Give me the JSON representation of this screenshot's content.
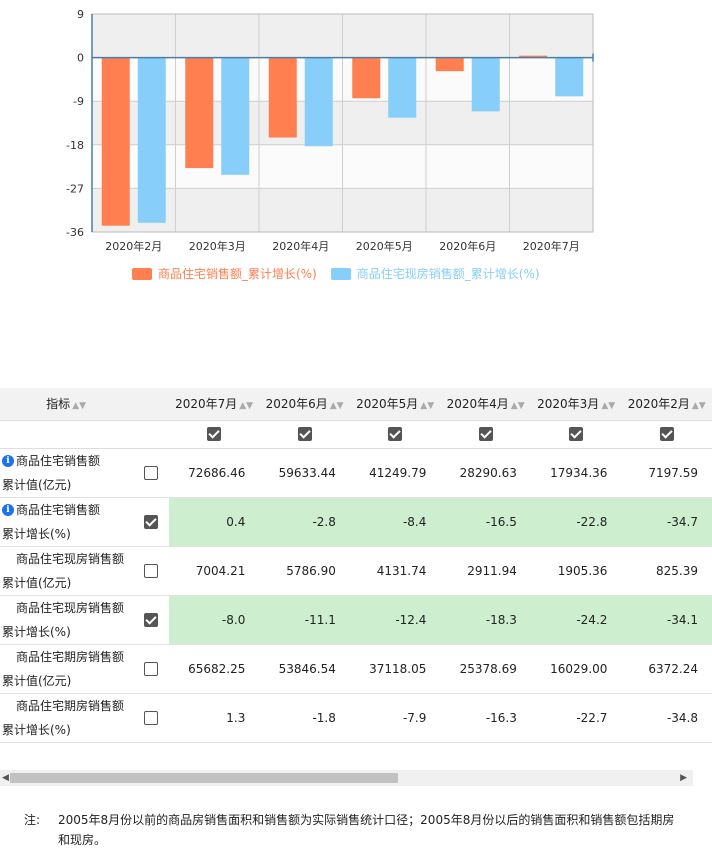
{
  "chart_data": {
    "type": "bar",
    "categories": [
      "2020年2月",
      "2020年3月",
      "2020年4月",
      "2020年5月",
      "2020年6月",
      "2020年7月"
    ],
    "series": [
      {
        "name": "商品住宅销售额_累计增长(%)",
        "color": "#ff7f50",
        "values": [
          -34.7,
          -22.8,
          -16.5,
          -8.4,
          -2.8,
          0.4
        ]
      },
      {
        "name": "商品住宅现房销售额_累计增长(%)",
        "color": "#87cefa",
        "values": [
          -34.1,
          -24.2,
          -18.3,
          -12.4,
          -11.1,
          -8.0
        ]
      }
    ],
    "yticks": [
      9,
      0,
      -9,
      -18,
      -27,
      -36
    ],
    "ylim": [
      -36,
      9
    ],
    "grid": true,
    "legend_position": "bottom"
  },
  "table": {
    "header_label": "指标",
    "columns": [
      "2020年7月",
      "2020年6月",
      "2020年5月",
      "2020年4月",
      "2020年3月",
      "2020年2月"
    ],
    "column_checks": [
      true,
      true,
      true,
      true,
      true,
      true
    ],
    "rows": [
      {
        "line1": "商品住宅销售额",
        "line2": "累计值(亿元)",
        "info": true,
        "checked": false,
        "highlight": false,
        "values": [
          "72686.46",
          "59633.44",
          "41249.79",
          "28290.63",
          "17934.36",
          "7197.59"
        ]
      },
      {
        "line1": "商品住宅销售额",
        "line2": "累计增长(%)",
        "info": true,
        "checked": true,
        "highlight": true,
        "values": [
          "0.4",
          "-2.8",
          "-8.4",
          "-16.5",
          "-22.8",
          "-34.7"
        ]
      },
      {
        "line1": "商品住宅现房销售额",
        "line2": "累计值(亿元)",
        "info": false,
        "checked": false,
        "highlight": false,
        "values": [
          "7004.21",
          "5786.90",
          "4131.74",
          "2911.94",
          "1905.36",
          "825.39"
        ]
      },
      {
        "line1": "商品住宅现房销售额",
        "line2": "累计增长(%)",
        "info": false,
        "checked": true,
        "highlight": true,
        "values": [
          "-8.0",
          "-11.1",
          "-12.4",
          "-18.3",
          "-24.2",
          "-34.1"
        ]
      },
      {
        "line1": "商品住宅期房销售额",
        "line2": "累计值(亿元)",
        "info": false,
        "checked": false,
        "highlight": false,
        "values": [
          "65682.25",
          "53846.54",
          "37118.05",
          "25378.69",
          "16029.00",
          "6372.24"
        ]
      },
      {
        "line1": "商品住宅期房销售额",
        "line2": "累计增长(%)",
        "info": false,
        "checked": false,
        "highlight": false,
        "values": [
          "1.3",
          "-1.8",
          "-7.9",
          "-16.3",
          "-22.7",
          "-34.8"
        ]
      }
    ]
  },
  "note": {
    "label": "注:",
    "text": "2005年8月份以前的商品房销售面积和销售额为实际销售统计口径；2005年8月份以后的销售面积和销售额包括期房和现房。"
  }
}
